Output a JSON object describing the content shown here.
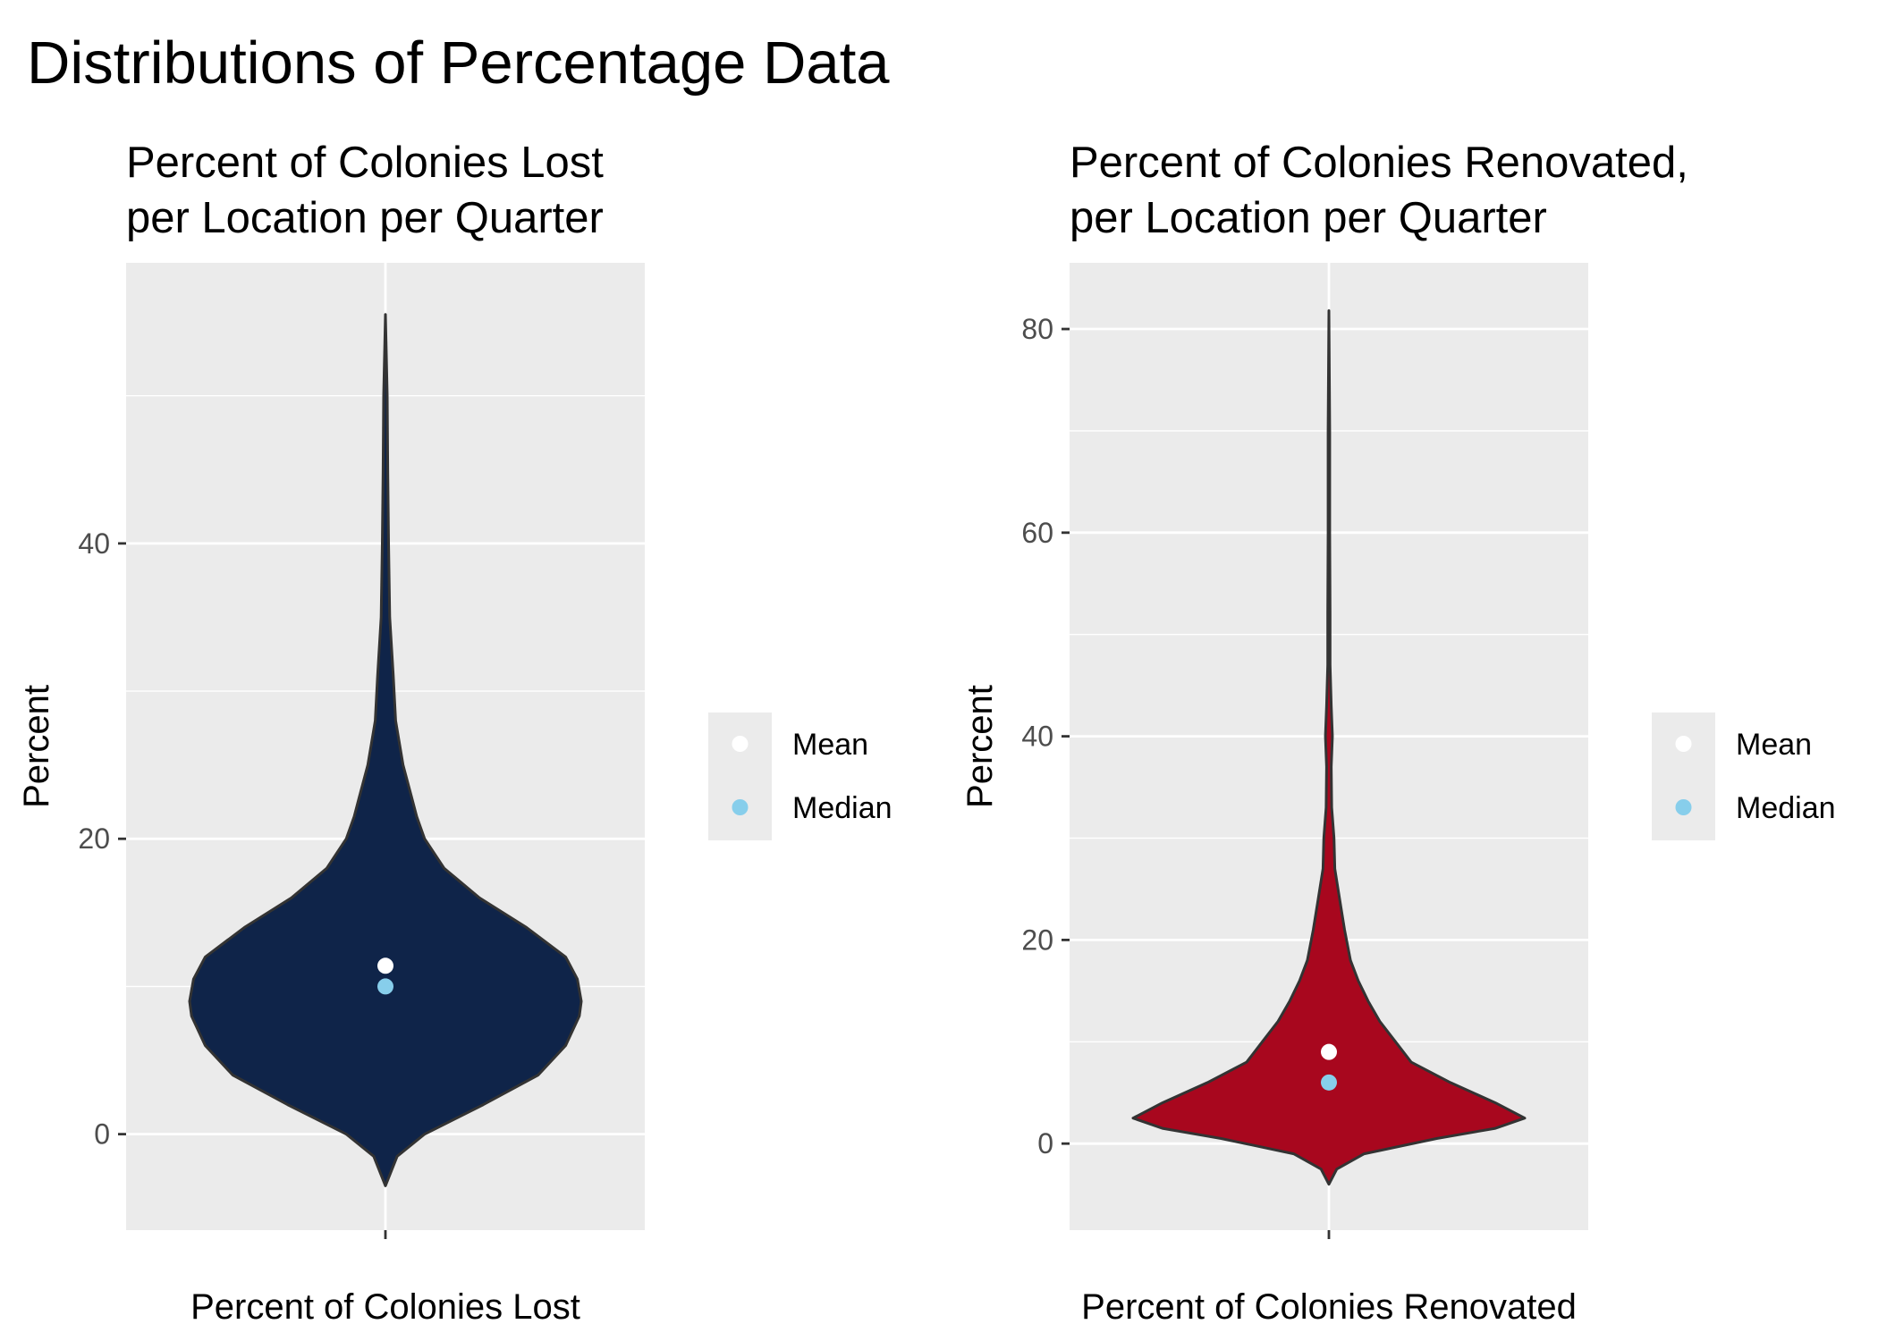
{
  "figure": {
    "title": "Distributions of Percentage Data"
  },
  "chart_data": [
    {
      "type": "violin",
      "title_lines": [
        "Percent of Colonies Lost",
        "per Location per Quarter"
      ],
      "xlabel": "Percent of Colonies Lost",
      "ylabel": "Percent",
      "category": "Percent of Colonies Lost",
      "ylim": [
        -6.5,
        59
      ],
      "yticks": [
        0,
        20,
        40
      ],
      "fill_color": "#0f2449",
      "grid": true,
      "legend_position": "right",
      "violin_profile": [
        {
          "y": -3.5,
          "w": 0.0
        },
        {
          "y": -1.5,
          "w": 0.06
        },
        {
          "y": 0,
          "w": 0.2
        },
        {
          "y": 2,
          "w": 0.5
        },
        {
          "y": 4,
          "w": 0.78
        },
        {
          "y": 6,
          "w": 0.92
        },
        {
          "y": 8,
          "w": 0.99
        },
        {
          "y": 9,
          "w": 1.0
        },
        {
          "y": 10.5,
          "w": 0.98
        },
        {
          "y": 12,
          "w": 0.92
        },
        {
          "y": 14,
          "w": 0.72
        },
        {
          "y": 16,
          "w": 0.48
        },
        {
          "y": 18,
          "w": 0.3
        },
        {
          "y": 20,
          "w": 0.2
        },
        {
          "y": 21.5,
          "w": 0.16
        },
        {
          "y": 23,
          "w": 0.13
        },
        {
          "y": 25,
          "w": 0.09
        },
        {
          "y": 28,
          "w": 0.052
        },
        {
          "y": 31,
          "w": 0.04
        },
        {
          "y": 35,
          "w": 0.022
        },
        {
          "y": 40,
          "w": 0.016
        },
        {
          "y": 45,
          "w": 0.012
        },
        {
          "y": 50,
          "w": 0.009
        },
        {
          "y": 55.5,
          "w": 0.0
        }
      ],
      "points": [
        {
          "label": "Mean",
          "value": 11.4,
          "color": "#ffffff"
        },
        {
          "label": "Median",
          "value": 10.0,
          "color": "#87ceeb"
        }
      ],
      "legend": [
        {
          "label": "Mean",
          "color": "#ffffff"
        },
        {
          "label": "Median",
          "color": "#87ceeb"
        }
      ]
    },
    {
      "type": "violin",
      "title_lines": [
        "Percent of Colonies Renovated,",
        "per Location per Quarter"
      ],
      "xlabel": "Percent of Colonies Renovated",
      "ylabel": "Percent",
      "category": "Percent of Colonies Renovated",
      "ylim": [
        -8.5,
        86.5
      ],
      "yticks": [
        0,
        20,
        40,
        60,
        80
      ],
      "fill_color": "#a8071e",
      "grid": true,
      "legend_position": "right",
      "violin_profile": [
        {
          "y": -4,
          "w": 0.0
        },
        {
          "y": -2.5,
          "w": 0.04
        },
        {
          "y": -1,
          "w": 0.18
        },
        {
          "y": 0.5,
          "w": 0.55
        },
        {
          "y": 1.5,
          "w": 0.85
        },
        {
          "y": 2.5,
          "w": 1.0
        },
        {
          "y": 4,
          "w": 0.85
        },
        {
          "y": 6,
          "w": 0.62
        },
        {
          "y": 8,
          "w": 0.42
        },
        {
          "y": 10,
          "w": 0.34
        },
        {
          "y": 12,
          "w": 0.26
        },
        {
          "y": 14,
          "w": 0.2
        },
        {
          "y": 16,
          "w": 0.15
        },
        {
          "y": 18,
          "w": 0.11
        },
        {
          "y": 21,
          "w": 0.08
        },
        {
          "y": 24,
          "w": 0.055
        },
        {
          "y": 27,
          "w": 0.03
        },
        {
          "y": 30,
          "w": 0.026
        },
        {
          "y": 33,
          "w": 0.014
        },
        {
          "y": 37,
          "w": 0.012
        },
        {
          "y": 40,
          "w": 0.018
        },
        {
          "y": 43,
          "w": 0.012
        },
        {
          "y": 47,
          "w": 0.006
        },
        {
          "y": 52,
          "w": 0.006
        },
        {
          "y": 60,
          "w": 0.004
        },
        {
          "y": 70,
          "w": 0.004
        },
        {
          "y": 81.8,
          "w": 0.0
        }
      ],
      "points": [
        {
          "label": "Mean",
          "value": 9.0,
          "color": "#ffffff"
        },
        {
          "label": "Median",
          "value": 6.0,
          "color": "#87ceeb"
        }
      ],
      "legend": [
        {
          "label": "Mean",
          "color": "#ffffff"
        },
        {
          "label": "Median",
          "color": "#87ceeb"
        }
      ]
    }
  ]
}
